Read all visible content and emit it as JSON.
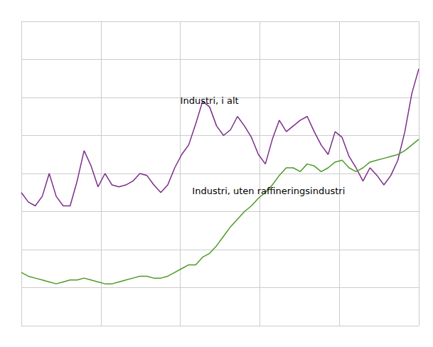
{
  "chart_data": {
    "type": "line",
    "x": [
      0,
      1,
      2,
      3,
      4,
      5,
      6,
      7,
      8,
      9,
      10,
      11,
      12,
      13,
      14,
      15,
      16,
      17,
      18,
      19,
      20,
      21,
      22,
      23,
      24,
      25,
      26,
      27,
      28,
      29,
      30,
      31,
      32,
      33,
      34,
      35,
      36,
      37,
      38,
      39,
      40,
      41,
      42,
      43,
      44,
      45,
      46,
      47,
      48,
      49,
      50,
      51,
      52,
      53,
      54,
      55,
      56,
      57
    ],
    "series": [
      {
        "color": "#7b2d8b",
        "values": [
          130,
          125,
          123,
          128,
          140,
          128,
          123,
          123,
          136,
          152,
          144,
          133,
          140,
          134,
          133,
          134,
          136,
          140,
          139,
          134,
          130,
          134,
          143,
          150,
          155,
          166,
          178,
          175,
          165,
          160,
          163,
          170,
          165,
          159,
          150,
          145,
          158,
          168,
          162,
          165,
          168,
          170,
          162,
          155,
          150,
          162,
          159,
          149,
          143,
          136,
          143,
          139,
          134,
          139,
          147,
          162,
          182,
          195
        ]
      },
      {
        "color": "#4e9a27",
        "values": [
          88,
          86,
          85,
          84,
          83,
          82,
          83,
          84,
          84,
          85,
          84,
          83,
          82,
          82,
          83,
          84,
          85,
          86,
          86,
          85,
          85,
          86,
          88,
          90,
          92,
          92,
          96,
          98,
          102,
          107,
          112,
          116,
          120,
          123,
          127,
          130,
          134,
          139,
          143,
          143,
          141,
          145,
          144,
          141,
          143,
          146,
          147,
          143,
          141,
          143,
          146,
          147,
          148,
          149,
          150,
          152,
          155,
          158
        ]
      }
    ],
    "annotations": [
      "Industri, i alt",
      "Industri, uten raffineringsindustri"
    ],
    "xlim": [
      0,
      57
    ],
    "xticks": [
      0,
      11.4,
      22.8,
      34.2,
      45.6,
      57
    ],
    "ylim": [
      60,
      220
    ],
    "yticks": [
      60,
      80,
      100,
      120,
      140,
      160,
      180,
      200,
      220
    ],
    "grid": true,
    "tick_labels": false
  }
}
